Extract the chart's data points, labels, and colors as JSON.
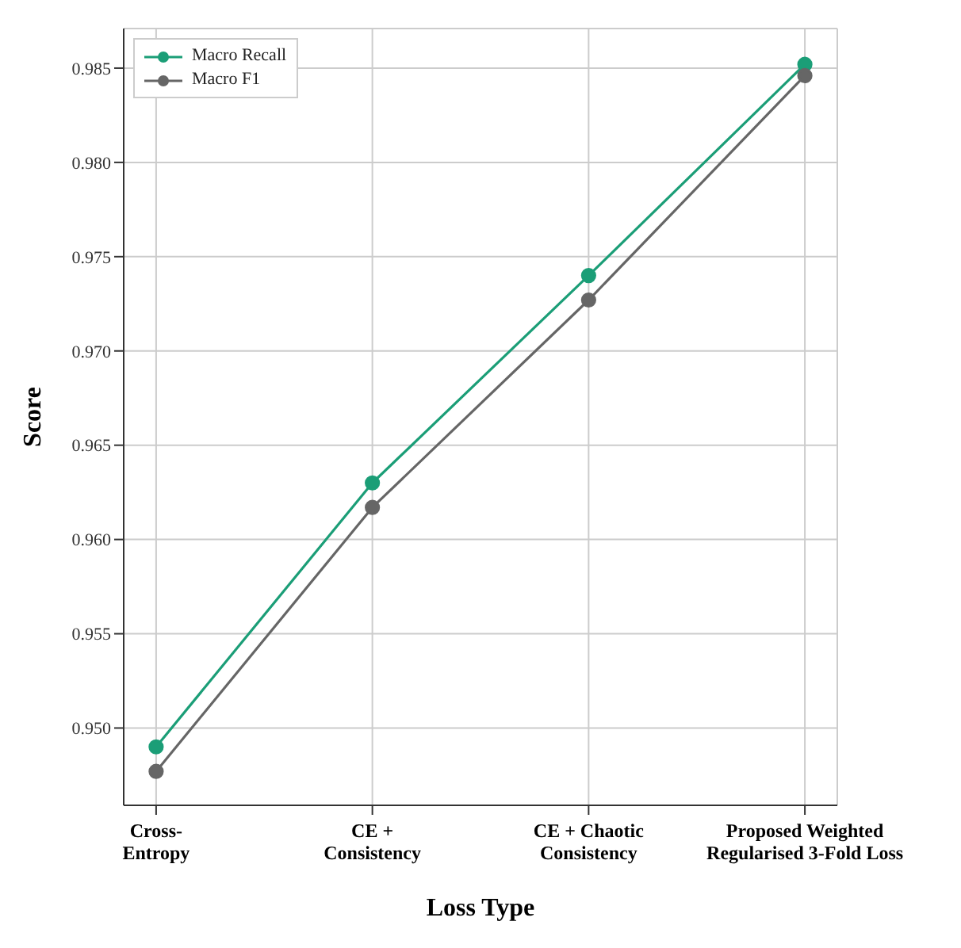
{
  "chart_data": {
    "type": "line",
    "xlabel": "Loss Type",
    "ylabel": "Score",
    "categories": [
      "Cross-\nEntropy",
      "CE +\nConsistency",
      "CE + Chaotic\nConsistency",
      "Proposed Weighted\nRegularised 3-Fold Loss"
    ],
    "series": [
      {
        "name": "Macro Recall",
        "color": "#1b9e77",
        "values": [
          0.949,
          0.963,
          0.974,
          0.9852
        ]
      },
      {
        "name": "Macro F1",
        "color": "#666666",
        "values": [
          0.9477,
          0.9617,
          0.9727,
          0.9846
        ]
      }
    ],
    "ylim": [
      0.9459,
      0.9871
    ],
    "yticks": [
      {
        "value": 0.95,
        "label": "0.950"
      },
      0.955,
      {
        "value": 0.96,
        "label": "0.960"
      },
      0.965,
      {
        "value": 0.97,
        "label": "0.970"
      },
      0.975,
      {
        "value": 0.98,
        "label": "0.980"
      },
      0.985
    ],
    "grid": true,
    "legend": "top left",
    "marker": "circle",
    "line_style": "solid"
  }
}
